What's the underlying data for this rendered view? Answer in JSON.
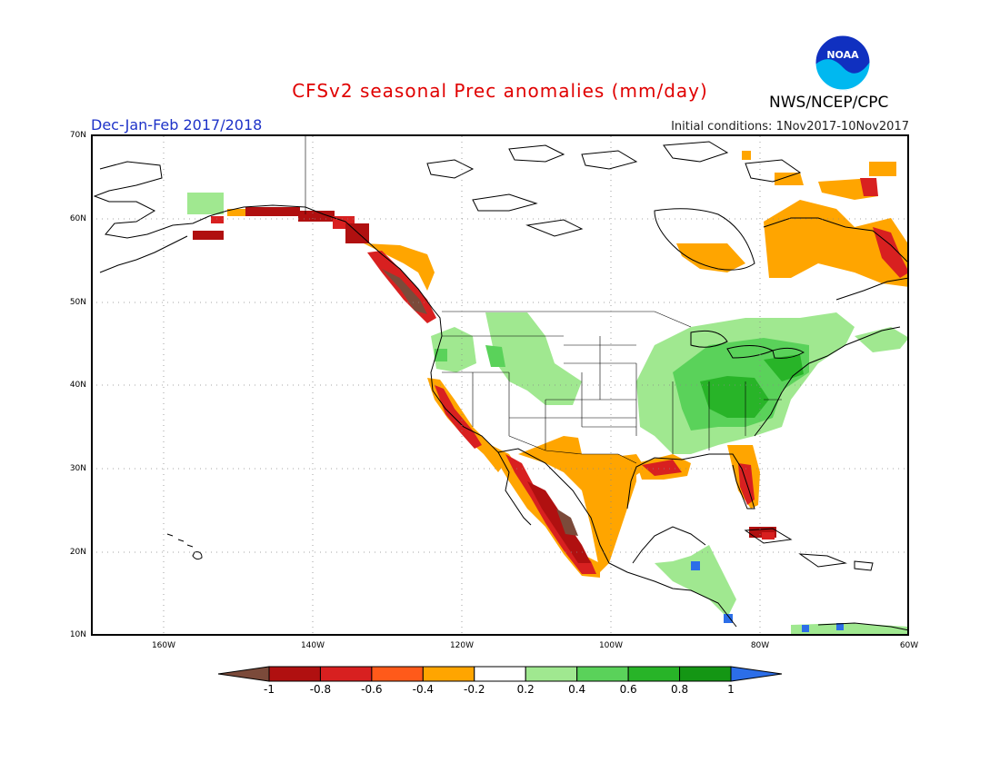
{
  "header": {
    "title": "CFSv2 seasonal Prec anomalies (mm/day)",
    "season": "Dec-Jan-Feb 2017/2018",
    "initial_conditions": "Initial conditions: 1Nov2017-10Nov2017",
    "agency": "NWS/NCEP/CPC",
    "logo_text": "NOAA"
  },
  "map": {
    "lat_labels": [
      "70N",
      "60N",
      "50N",
      "40N",
      "30N",
      "20N",
      "10N"
    ],
    "lon_labels": [
      "160W",
      "140W",
      "120W",
      "100W",
      "80W",
      "60W"
    ],
    "gridlines": "dotted"
  },
  "colorbar": {
    "ticks": [
      "-1",
      "-0.8",
      "-0.6",
      "-0.4",
      "-0.2",
      "0.2",
      "0.4",
      "0.6",
      "0.8",
      "1"
    ],
    "colors": [
      "#7b4a3a",
      "#b01010",
      "#d82020",
      "#ff5a1a",
      "#ffa500",
      "#ffffff",
      "#a0e890",
      "#5ad25a",
      "#28b428",
      "#149614",
      "#2c6ee8"
    ]
  }
}
